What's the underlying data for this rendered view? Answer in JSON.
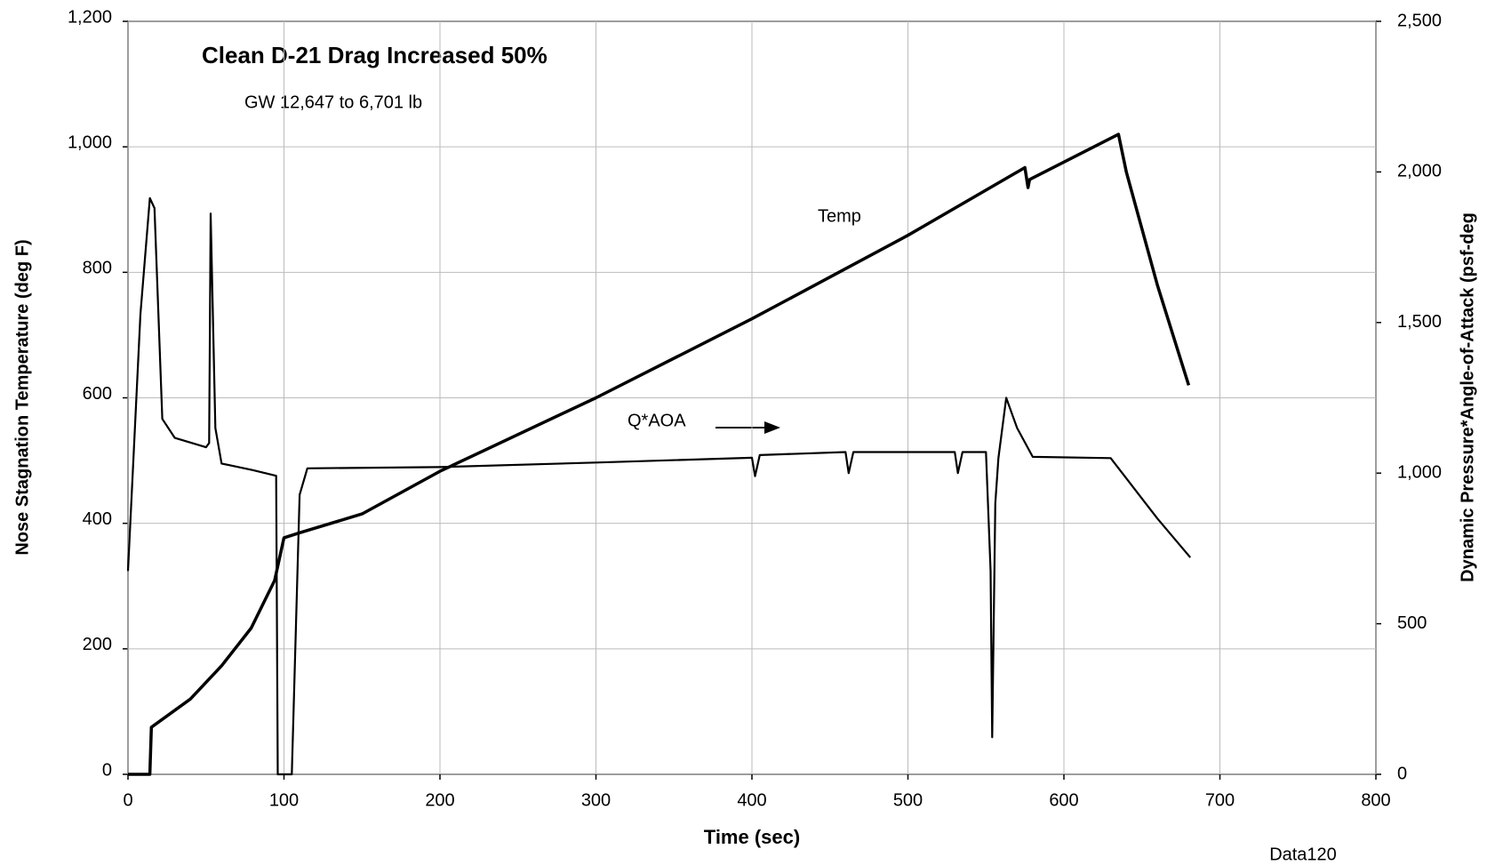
{
  "chart_data": {
    "type": "line",
    "title": "Clean D-21 Drag Increased 50%",
    "subtitle": "GW 12,647 to 6,701 lb",
    "x_label": "Time (sec)",
    "y_label": "Nose Stagnation Temperature (deg F)",
    "y2_label": "Dynamic Pressure*Angle-of-Attack (psf-deg",
    "annotations": [
      "Temp",
      "Q*AOA"
    ],
    "source": "Data120",
    "xlim": [
      0,
      800
    ],
    "xticks": [
      0,
      100,
      200,
      300,
      400,
      500,
      600,
      700,
      800
    ],
    "ylim": [
      0,
      1200
    ],
    "yticks": [
      0,
      200,
      400,
      600,
      800,
      {
        "value": 1000,
        "label": "1,000"
      },
      {
        "value": 1200,
        "label": "1,200"
      }
    ],
    "y2lim": [
      0,
      2500
    ],
    "y2ticks": [
      0,
      500,
      {
        "value": 1000,
        "label": "1,000"
      },
      {
        "value": 1500,
        "label": "1,500"
      },
      {
        "value": 2000,
        "label": "2,000"
      },
      {
        "value": 2500,
        "label": "2,500"
      }
    ],
    "grid": true,
    "series": [
      {
        "name": "Temp",
        "color": "#000000",
        "axis": "y",
        "x": [
          0,
          14,
          15,
          40,
          60,
          79,
          94,
          100,
          110,
          150,
          200,
          300,
          400,
          500,
          575,
          577,
          578,
          635,
          640,
          660,
          680
        ],
        "values": [
          0,
          0,
          75,
          120,
          173,
          233,
          309,
          377,
          385,
          415,
          483,
          600,
          726,
          859,
          967,
          935,
          948,
          1020,
          960,
          779,
          620
        ]
      },
      {
        "name": "Q*AOA",
        "color": "#000000",
        "axis": "y2",
        "x": [
          0,
          8,
          14,
          17,
          22,
          30,
          50,
          52,
          53,
          56,
          60,
          80,
          95,
          96,
          105,
          110,
          115,
          200,
          300,
          400,
          402,
          405,
          460,
          462,
          465,
          530,
          532,
          535,
          550,
          553,
          554,
          556,
          558,
          563,
          570,
          580,
          630,
          660,
          681
        ],
        "values": [
          675,
          1528,
          1913,
          1880,
          1180,
          1117,
          1086,
          1100,
          1862,
          1150,
          1032,
          1010,
          991,
          0,
          0,
          928,
          1016,
          1020,
          1035,
          1051,
          990,
          1060,
          1070,
          1000,
          1070,
          1070,
          1000,
          1070,
          1070,
          675,
          123,
          900,
          1050,
          1250,
          1150,
          1054,
          1050,
          849,
          720
        ]
      }
    ]
  }
}
